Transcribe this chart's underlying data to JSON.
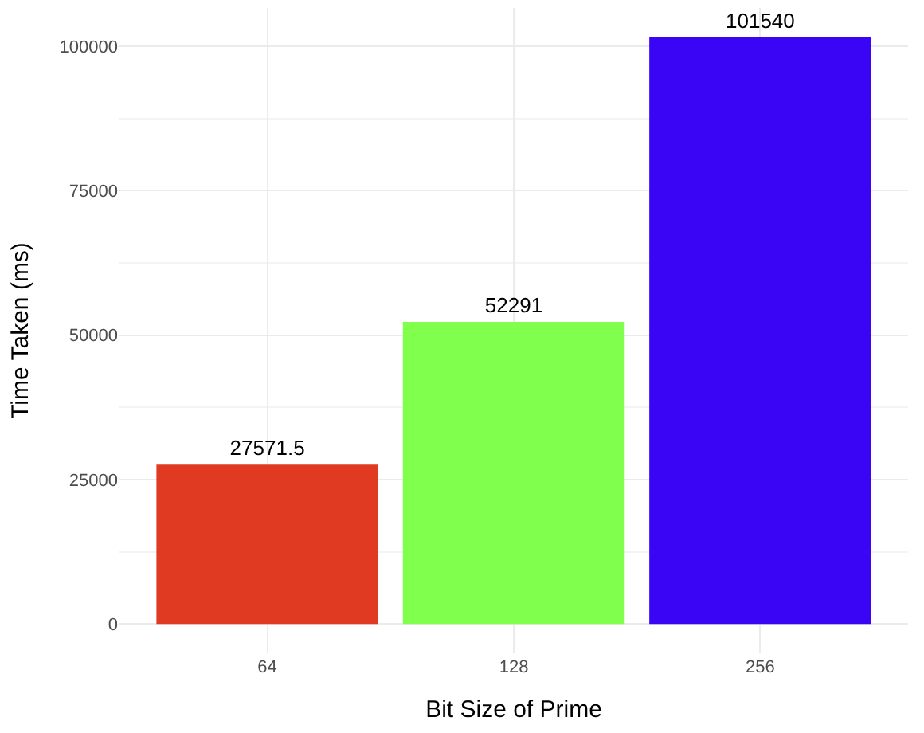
{
  "chart_data": {
    "type": "bar",
    "xlabel": "Bit Size of Prime",
    "ylabel": "Time Taken (ms)",
    "categories": [
      "64",
      "128",
      "256"
    ],
    "values": [
      27571.5,
      52291,
      101540
    ],
    "colors": [
      "#e03a22",
      "#80ff4d",
      "#3a05f5"
    ],
    "ylim": [
      -5077,
      106617
    ],
    "yticks": [
      0,
      25000,
      50000,
      75000,
      100000
    ],
    "grid": true,
    "data_labels": true
  }
}
